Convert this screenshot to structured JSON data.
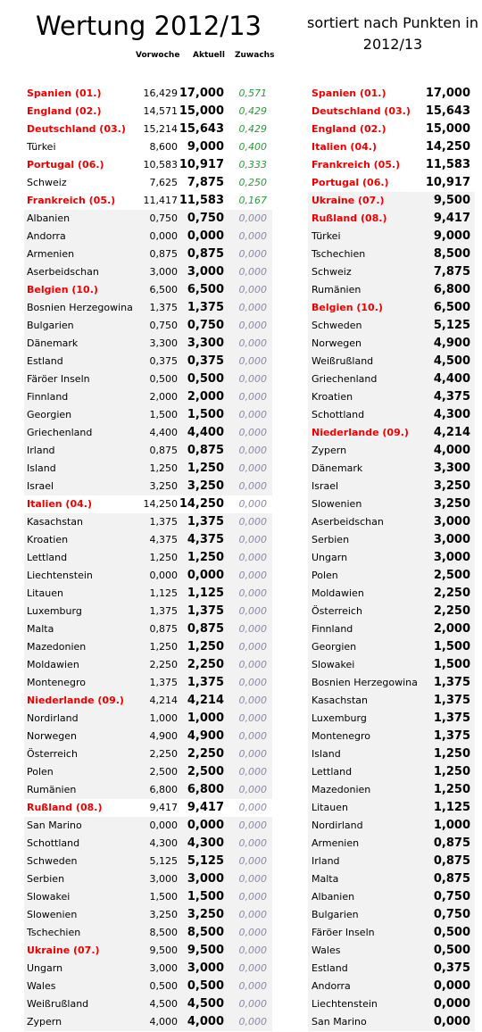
{
  "header": {
    "title": "Wertung 2012/13",
    "subtitle": "sortiert nach Punkten in 2012/13",
    "columns": [
      "Vorwoche",
      "Aktuell",
      "Zuwachs"
    ]
  },
  "left_table": {
    "rows": [
      [
        "Spanien (01.)",
        "16,429",
        "17,000",
        "0,571"
      ],
      [
        "England (02.)",
        "14,571",
        "15,000",
        "0,429"
      ],
      [
        "Deutschland (03.)",
        "15,214",
        "15,643",
        "0,429"
      ],
      [
        "Türkei",
        "8,600",
        "9,000",
        "0,400"
      ],
      [
        "Portugal (06.)",
        "10,583",
        "10,917",
        "0,333"
      ],
      [
        "Schweiz",
        "7,625",
        "7,875",
        "0,250"
      ],
      [
        "Frankreich (05.)",
        "11,417",
        "11,583",
        "0,167"
      ],
      [
        "Albanien",
        "0,750",
        "0,750",
        "0,000"
      ],
      [
        "Andorra",
        "0,000",
        "0,000",
        "0,000"
      ],
      [
        "Armenien",
        "0,875",
        "0,875",
        "0,000"
      ],
      [
        "Aserbeidschan",
        "3,000",
        "3,000",
        "0,000"
      ],
      [
        "Belgien (10.)",
        "6,500",
        "6,500",
        "0,000"
      ],
      [
        "Bosnien Herzegowina",
        "1,375",
        "1,375",
        "0,000"
      ],
      [
        "Bulgarien",
        "0,750",
        "0,750",
        "0,000"
      ],
      [
        "Dänemark",
        "3,300",
        "3,300",
        "0,000"
      ],
      [
        "Estland",
        "0,375",
        "0,375",
        "0,000"
      ],
      [
        "Färöer Inseln",
        "0,500",
        "0,500",
        "0,000"
      ],
      [
        "Finnland",
        "2,000",
        "2,000",
        "0,000"
      ],
      [
        "Georgien",
        "1,500",
        "1,500",
        "0,000"
      ],
      [
        "Griechenland",
        "4,400",
        "4,400",
        "0,000"
      ],
      [
        "Irland",
        "0,875",
        "0,875",
        "0,000"
      ],
      [
        "Island",
        "1,250",
        "1,250",
        "0,000"
      ],
      [
        "Israel",
        "3,250",
        "3,250",
        "0,000"
      ],
      [
        "Italien (04.)",
        "14,250",
        "14,250",
        "0,000"
      ],
      [
        "Kasachstan",
        "1,375",
        "1,375",
        "0,000"
      ],
      [
        "Kroatien",
        "4,375",
        "4,375",
        "0,000"
      ],
      [
        "Lettland",
        "1,250",
        "1,250",
        "0,000"
      ],
      [
        "Liechtenstein",
        "0,000",
        "0,000",
        "0,000"
      ],
      [
        "Litauen",
        "1,125",
        "1,125",
        "0,000"
      ],
      [
        "Luxemburg",
        "1,375",
        "1,375",
        "0,000"
      ],
      [
        "Malta",
        "0,875",
        "0,875",
        "0,000"
      ],
      [
        "Mazedonien",
        "1,250",
        "1,250",
        "0,000"
      ],
      [
        "Moldawien",
        "2,250",
        "2,250",
        "0,000"
      ],
      [
        "Montenegro",
        "1,375",
        "1,375",
        "0,000"
      ],
      [
        "Niederlande (09.)",
        "4,214",
        "4,214",
        "0,000"
      ],
      [
        "Nordirland",
        "1,000",
        "1,000",
        "0,000"
      ],
      [
        "Norwegen",
        "4,900",
        "4,900",
        "0,000"
      ],
      [
        "Österreich",
        "2,250",
        "2,250",
        "0,000"
      ],
      [
        "Polen",
        "2,500",
        "2,500",
        "0,000"
      ],
      [
        "Rumänien",
        "6,800",
        "6,800",
        "0,000"
      ],
      [
        "Rußland (08.)",
        "9,417",
        "9,417",
        "0,000"
      ],
      [
        "San Marino",
        "0,000",
        "0,000",
        "0,000"
      ],
      [
        "Schottland",
        "4,300",
        "4,300",
        "0,000"
      ],
      [
        "Schweden",
        "5,125",
        "5,125",
        "0,000"
      ],
      [
        "Serbien",
        "3,000",
        "3,000",
        "0,000"
      ],
      [
        "Slowakei",
        "1,500",
        "1,500",
        "0,000"
      ],
      [
        "Slowenien",
        "3,250",
        "3,250",
        "0,000"
      ],
      [
        "Tschechien",
        "8,500",
        "8,500",
        "0,000"
      ],
      [
        "Ukraine (07.)",
        "9,500",
        "9,500",
        "0,000"
      ],
      [
        "Ungarn",
        "3,000",
        "3,000",
        "0,000"
      ],
      [
        "Wales",
        "0,500",
        "0,500",
        "0,000"
      ],
      [
        "Weißrußland",
        "4,500",
        "4,500",
        "0,000"
      ],
      [
        "Zypern",
        "4,000",
        "4,000",
        "0,000"
      ]
    ]
  },
  "right_table": {
    "rows": [
      [
        "Spanien (01.)",
        "17,000"
      ],
      [
        "Deutschland (03.)",
        "15,643"
      ],
      [
        "England (02.)",
        "15,000"
      ],
      [
        "Italien (04.)",
        "14,250"
      ],
      [
        "Frankreich (05.)",
        "11,583"
      ],
      [
        "Portugal (06.)",
        "10,917"
      ],
      [
        "Ukraine (07.)",
        "9,500"
      ],
      [
        "Rußland (08.)",
        "9,417"
      ],
      [
        "Türkei",
        "9,000"
      ],
      [
        "Tschechien",
        "8,500"
      ],
      [
        "Schweiz",
        "7,875"
      ],
      [
        "Rumänien",
        "6,800"
      ],
      [
        "Belgien (10.)",
        "6,500"
      ],
      [
        "Schweden",
        "5,125"
      ],
      [
        "Norwegen",
        "4,900"
      ],
      [
        "Weißrußland",
        "4,500"
      ],
      [
        "Griechenland",
        "4,400"
      ],
      [
        "Kroatien",
        "4,375"
      ],
      [
        "Schottland",
        "4,300"
      ],
      [
        "Niederlande (09.)",
        "4,214"
      ],
      [
        "Zypern",
        "4,000"
      ],
      [
        "Dänemark",
        "3,300"
      ],
      [
        "Israel",
        "3,250"
      ],
      [
        "Slowenien",
        "3,250"
      ],
      [
        "Aserbeidschan",
        "3,000"
      ],
      [
        "Serbien",
        "3,000"
      ],
      [
        "Ungarn",
        "3,000"
      ],
      [
        "Polen",
        "2,500"
      ],
      [
        "Moldawien",
        "2,250"
      ],
      [
        "Österreich",
        "2,250"
      ],
      [
        "Finnland",
        "2,000"
      ],
      [
        "Georgien",
        "1,500"
      ],
      [
        "Slowakei",
        "1,500"
      ],
      [
        "Bosnien Herzegowina",
        "1,375"
      ],
      [
        "Kasachstan",
        "1,375"
      ],
      [
        "Luxemburg",
        "1,375"
      ],
      [
        "Montenegro",
        "1,375"
      ],
      [
        "Island",
        "1,250"
      ],
      [
        "Lettland",
        "1,250"
      ],
      [
        "Mazedonien",
        "1,250"
      ],
      [
        "Litauen",
        "1,125"
      ],
      [
        "Nordirland",
        "1,000"
      ],
      [
        "Armenien",
        "0,875"
      ],
      [
        "Irland",
        "0,875"
      ],
      [
        "Malta",
        "0,875"
      ],
      [
        "Albanien",
        "0,750"
      ],
      [
        "Bulgarien",
        "0,750"
      ],
      [
        "Färöer Inseln",
        "0,500"
      ],
      [
        "Wales",
        "0,500"
      ],
      [
        "Estland",
        "0,375"
      ],
      [
        "Andorra",
        "0,000"
      ],
      [
        "Liechtenstein",
        "0,000"
      ],
      [
        "San Marino",
        "0,000"
      ]
    ]
  }
}
